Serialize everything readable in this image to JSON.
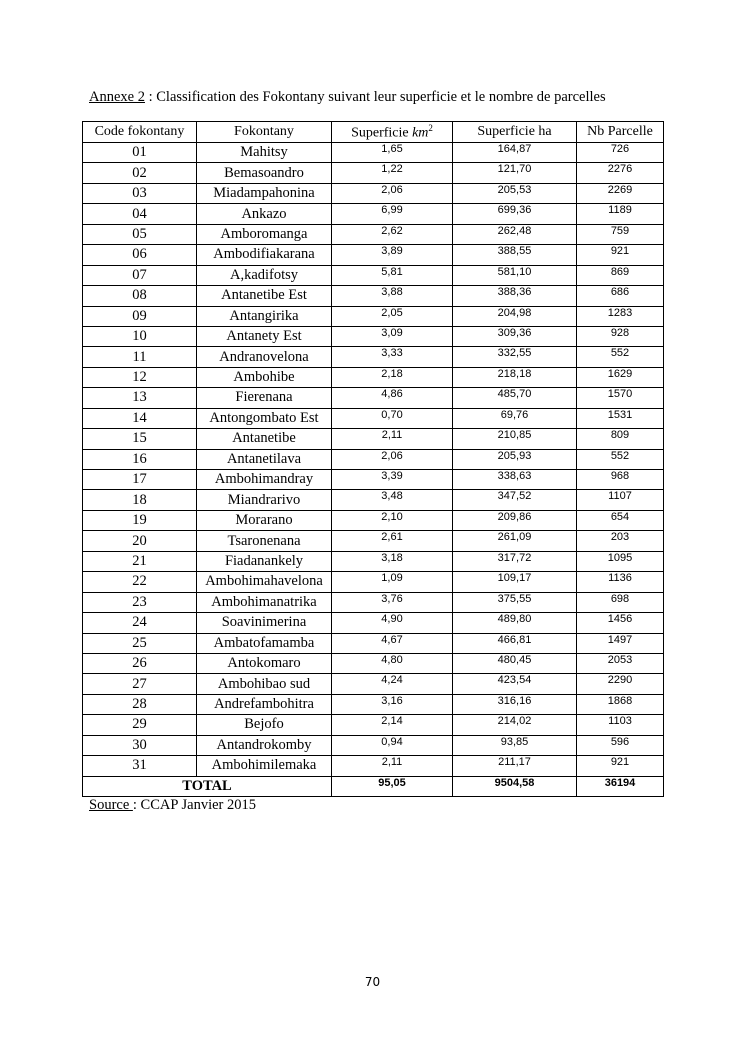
{
  "caption": {
    "label": "Annexe 2",
    "text": " : Classification des Fokontany suivant leur superficie et le nombre de parcelles"
  },
  "table": {
    "headers": {
      "code": "Code fokontany",
      "name": "Fokontany",
      "km_prefix": "Superficie ",
      "km_unit": "km",
      "km_exp": "2",
      "ha": "Superficie ha",
      "parcels": "Nb Parcelle"
    },
    "rows": [
      [
        "01",
        "Mahitsy",
        "1,65",
        "164,87",
        "726"
      ],
      [
        "02",
        "Bemasoandro",
        "1,22",
        "121,70",
        "2276"
      ],
      [
        "03",
        "Miadampahonina",
        "2,06",
        "205,53",
        "2269"
      ],
      [
        "04",
        "Ankazo",
        "6,99",
        "699,36",
        "1189"
      ],
      [
        "05",
        "Amboromanga",
        "2,62",
        "262,48",
        "759"
      ],
      [
        "06",
        "Ambodifiakarana",
        "3,89",
        "388,55",
        "921"
      ],
      [
        "07",
        "A,kadifotsy",
        "5,81",
        "581,10",
        "869"
      ],
      [
        "08",
        "Antanetibe Est",
        "3,88",
        "388,36",
        "686"
      ],
      [
        "09",
        "Antangirika",
        "2,05",
        "204,98",
        "1283"
      ],
      [
        "10",
        "Antanety Est",
        "3,09",
        "309,36",
        "928"
      ],
      [
        "11",
        "Andranovelona",
        "3,33",
        "332,55",
        "552"
      ],
      [
        "12",
        "Ambohibe",
        "2,18",
        "218,18",
        "1629"
      ],
      [
        "13",
        "Fierenana",
        "4,86",
        "485,70",
        "1570"
      ],
      [
        "14",
        "Antongombato Est",
        "0,70",
        "69,76",
        "1531"
      ],
      [
        "15",
        "Antanetibe",
        "2,11",
        "210,85",
        "809"
      ],
      [
        "16",
        "Antanetilava",
        "2,06",
        "205,93",
        "552"
      ],
      [
        "17",
        "Ambohimandray",
        "3,39",
        "338,63",
        "968"
      ],
      [
        "18",
        "Miandrarivo",
        "3,48",
        "347,52",
        "1107"
      ],
      [
        "19",
        "Morarano",
        "2,10",
        "209,86",
        "654"
      ],
      [
        "20",
        "Tsaronenana",
        "2,61",
        "261,09",
        "203"
      ],
      [
        "21",
        "Fiadanankely",
        "3,18",
        "317,72",
        "1095"
      ],
      [
        "22",
        "Ambohimahavelona",
        "1,09",
        "109,17",
        "1136"
      ],
      [
        "23",
        "Ambohimanatrika",
        "3,76",
        "375,55",
        "698"
      ],
      [
        "24",
        "Soavinimerina",
        "4,90",
        "489,80",
        "1456"
      ],
      [
        "25",
        "Ambatofamamba",
        "4,67",
        "466,81",
        "1497"
      ],
      [
        "26",
        "Antokomaro",
        "4,80",
        "480,45",
        "2053"
      ],
      [
        "27",
        "Ambohibao sud",
        "4,24",
        "423,54",
        "2290"
      ],
      [
        "28",
        "Andrefambohitra",
        "3,16",
        "316,16",
        "1868"
      ],
      [
        "29",
        "Bejofo",
        "2,14",
        "214,02",
        "1103"
      ],
      [
        "30",
        "Antandrokomby",
        "0,94",
        "93,85",
        "596"
      ],
      [
        "31",
        "Ambohimilemaka",
        "2,11",
        "211,17",
        "921"
      ]
    ],
    "total": {
      "label": "TOTAL",
      "km": "95,05",
      "ha": "9504,58",
      "parcels": "36194"
    }
  },
  "source": {
    "label": "Source ",
    "text": ": CCAP Janvier 2015"
  },
  "page_number": "70"
}
